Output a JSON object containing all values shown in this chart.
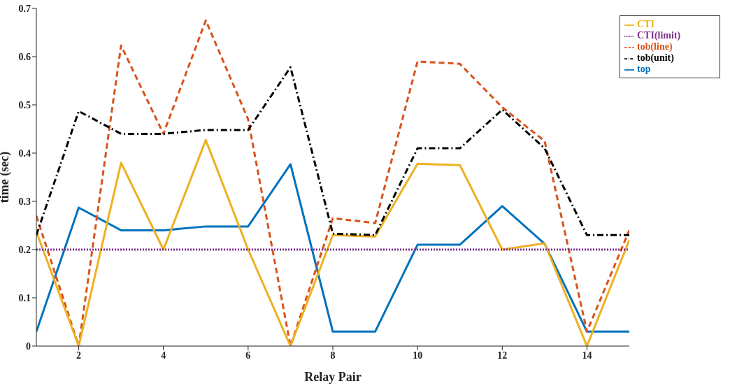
{
  "chart_data": {
    "type": "line",
    "xlabel": "Relay Pair",
    "ylabel": "time (sec)",
    "x": [
      1,
      2,
      3,
      4,
      5,
      6,
      7,
      8,
      9,
      10,
      11,
      12,
      13,
      14,
      15
    ],
    "xlim": [
      1,
      15
    ],
    "xticks": [
      2,
      4,
      6,
      8,
      10,
      12,
      14
    ],
    "ylim": [
      0,
      0.7
    ],
    "yticks": [
      0,
      0.1,
      0.2,
      0.3,
      0.4,
      0.5,
      0.6,
      0.7
    ],
    "grid": false,
    "legend": "top right",
    "marker": "none",
    "series": [
      {
        "name": "top",
        "color": "#0072bd",
        "line_style": "solid",
        "values": [
          0.03,
          0.287,
          0.24,
          0.24,
          0.248,
          0.248,
          0.377,
          0.03,
          0.03,
          0.21,
          0.21,
          0.29,
          0.212,
          0.03,
          0.03
        ]
      },
      {
        "name": "tob(line)",
        "color": "#d95319",
        "line_style": "dashed",
        "values": [
          0.27,
          0,
          0.623,
          0.44,
          0.675,
          0.47,
          0,
          0.265,
          0.255,
          0.59,
          0.585,
          0.495,
          0.425,
          0.03,
          0.24
        ]
      },
      {
        "name": "CTI",
        "color": "#edb120",
        "line_style": "solid",
        "values": [
          0.237,
          0,
          0.38,
          0.2,
          0.427,
          0.2,
          0,
          0.23,
          0.227,
          0.378,
          0.375,
          0.2,
          0.213,
          0,
          0.22
        ]
      },
      {
        "name": "CTI(limit)",
        "color": "#7e2f8e",
        "line_style": "dotted",
        "values": [
          0.2,
          0.2,
          0.2,
          0.2,
          0.2,
          0.2,
          0.2,
          0.2,
          0.2,
          0.2,
          0.2,
          0.2,
          0.2,
          0.2,
          0.2
        ]
      },
      {
        "name": "tob(unit)",
        "color": "#000000",
        "line_style": "dashdot",
        "values": [
          0.23,
          0.487,
          0.44,
          0.44,
          0.448,
          0.448,
          0.578,
          0.233,
          0.23,
          0.41,
          0.41,
          0.49,
          0.41,
          0.23,
          0.23
        ]
      }
    ]
  }
}
